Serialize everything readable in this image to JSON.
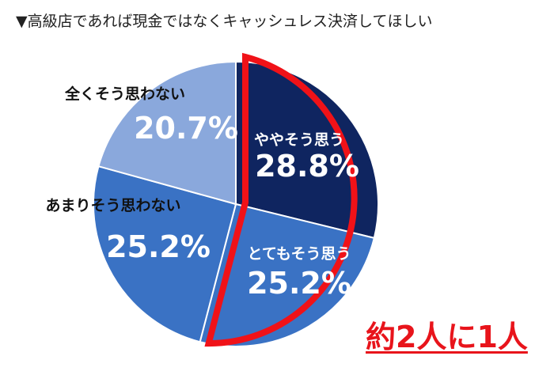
{
  "chart_data": {
    "type": "pie",
    "title": "▼高級店であれば現金ではなくキャッシュレス決済してほしい",
    "categories": [
      "ややそう思う",
      "とてもそう思う",
      "あまりそう思わない",
      "全くそう思わない"
    ],
    "values": [
      28.8,
      25.2,
      25.2,
      20.7
    ],
    "value_labels": [
      "28.8%",
      "25.2%",
      "25.2%",
      "20.7%"
    ],
    "colors": [
      "#0f2560",
      "#3a72c4",
      "#3a72c4",
      "#8aa8dc"
    ],
    "highlight": {
      "slices": [
        "ややそう思う",
        "とてもそう思う"
      ],
      "color": "#f01218",
      "annotation": "約2人に1人"
    }
  }
}
